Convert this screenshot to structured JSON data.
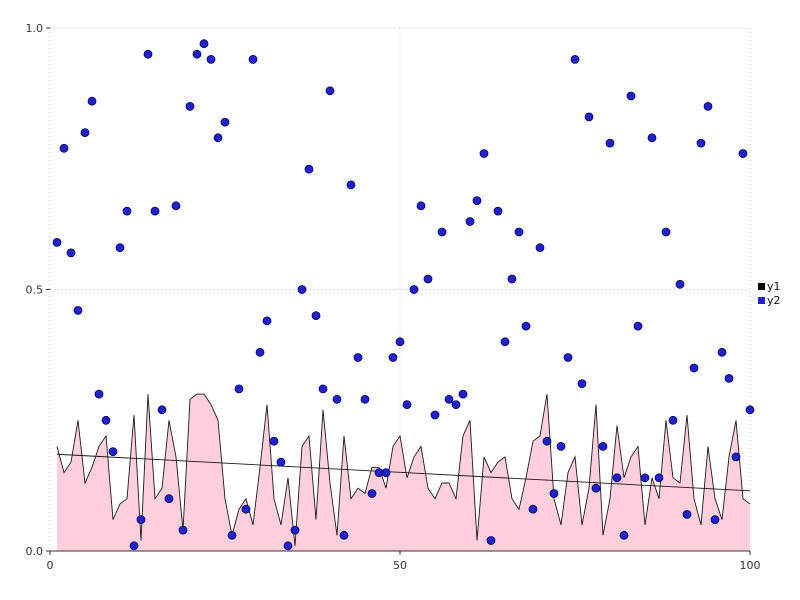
{
  "chart_data": {
    "type": "mixed",
    "title": "",
    "xlabel": "",
    "ylabel": "",
    "xlim": [
      0,
      100
    ],
    "ylim": [
      0.0,
      1.0
    ],
    "xticks": {
      "values": [
        0,
        50,
        100
      ],
      "labels": [
        "0",
        "50",
        "100"
      ]
    },
    "yticks": {
      "values": [
        0.0,
        0.5,
        1.0
      ],
      "labels": [
        "0.0",
        "0.5",
        "1.0"
      ]
    },
    "grid": "dotted",
    "colors": {
      "area_fill": "#ffcfdc",
      "line": "#1a1a1a",
      "scatter_fill": "#2222cc",
      "scatter_edge": "#000066",
      "grid_line": "#c8c8c8",
      "tick_text": "#333333",
      "axis": "#333333"
    },
    "legend": {
      "position": "right-middle",
      "entries": [
        {
          "label": "y1",
          "color": "#000000"
        },
        {
          "label": "y2",
          "color": "#2222cc"
        }
      ]
    },
    "series": [
      {
        "name": "y1",
        "type": "area-line",
        "x_range": [
          1,
          100
        ],
        "values": [
          0.2,
          0.15,
          0.17,
          0.25,
          0.13,
          0.16,
          0.2,
          0.22,
          0.06,
          0.09,
          0.1,
          0.26,
          0.02,
          0.3,
          0.1,
          0.12,
          0.25,
          0.18,
          0.04,
          0.29,
          0.3,
          0.3,
          0.28,
          0.25,
          0.1,
          0.03,
          0.08,
          0.1,
          0.05,
          0.16,
          0.28,
          0.1,
          0.05,
          0.14,
          0.01,
          0.2,
          0.22,
          0.06,
          0.27,
          0.13,
          0.03,
          0.22,
          0.1,
          0.12,
          0.11,
          0.16,
          0.16,
          0.12,
          0.2,
          0.22,
          0.14,
          0.18,
          0.2,
          0.12,
          0.1,
          0.13,
          0.13,
          0.1,
          0.22,
          0.25,
          0.02,
          0.18,
          0.15,
          0.17,
          0.18,
          0.1,
          0.08,
          0.14,
          0.21,
          0.22,
          0.3,
          0.1,
          0.05,
          0.15,
          0.18,
          0.05,
          0.12,
          0.28,
          0.03,
          0.1,
          0.24,
          0.14,
          0.18,
          0.2,
          0.05,
          0.14,
          0.1,
          0.25,
          0.14,
          0.13,
          0.26,
          0.1,
          0.05,
          0.2,
          0.1,
          0.06,
          0.18,
          0.25,
          0.1,
          0.09
        ]
      },
      {
        "name": "y1_trend",
        "type": "line",
        "x_range": [
          1,
          100
        ],
        "values": [
          0.185,
          0.115
        ]
      },
      {
        "name": "y2",
        "type": "scatter",
        "x_range": [
          1,
          100
        ],
        "values": [
          0.59,
          0.77,
          0.57,
          0.46,
          0.8,
          0.86,
          0.3,
          0.25,
          0.19,
          0.58,
          0.65,
          0.01,
          0.06,
          0.95,
          0.65,
          0.27,
          0.1,
          0.66,
          0.04,
          0.85,
          0.95,
          0.97,
          0.94,
          0.79,
          0.82,
          0.03,
          0.31,
          0.08,
          0.94,
          0.38,
          0.44,
          0.21,
          0.17,
          0.01,
          0.04,
          0.5,
          0.73,
          0.45,
          0.31,
          0.88,
          0.29,
          0.03,
          0.7,
          0.37,
          0.29,
          0.11,
          0.15,
          0.15,
          0.37,
          0.4,
          0.28,
          0.5,
          0.66,
          0.52,
          0.26,
          0.61,
          0.29,
          0.28,
          0.3,
          0.63,
          0.67,
          0.76,
          0.02,
          0.65,
          0.4,
          0.52,
          0.61,
          0.43,
          0.08,
          0.58,
          0.21,
          0.11,
          0.2,
          0.37,
          0.94,
          0.32,
          0.83,
          0.12,
          0.2,
          0.78,
          0.14,
          0.03,
          0.87,
          0.43,
          0.14,
          0.79,
          0.14,
          0.61,
          0.25,
          0.51,
          0.07,
          0.35,
          0.78,
          0.85,
          0.06,
          0.38,
          0.33,
          0.18,
          0.76,
          0.27
        ]
      }
    ]
  }
}
